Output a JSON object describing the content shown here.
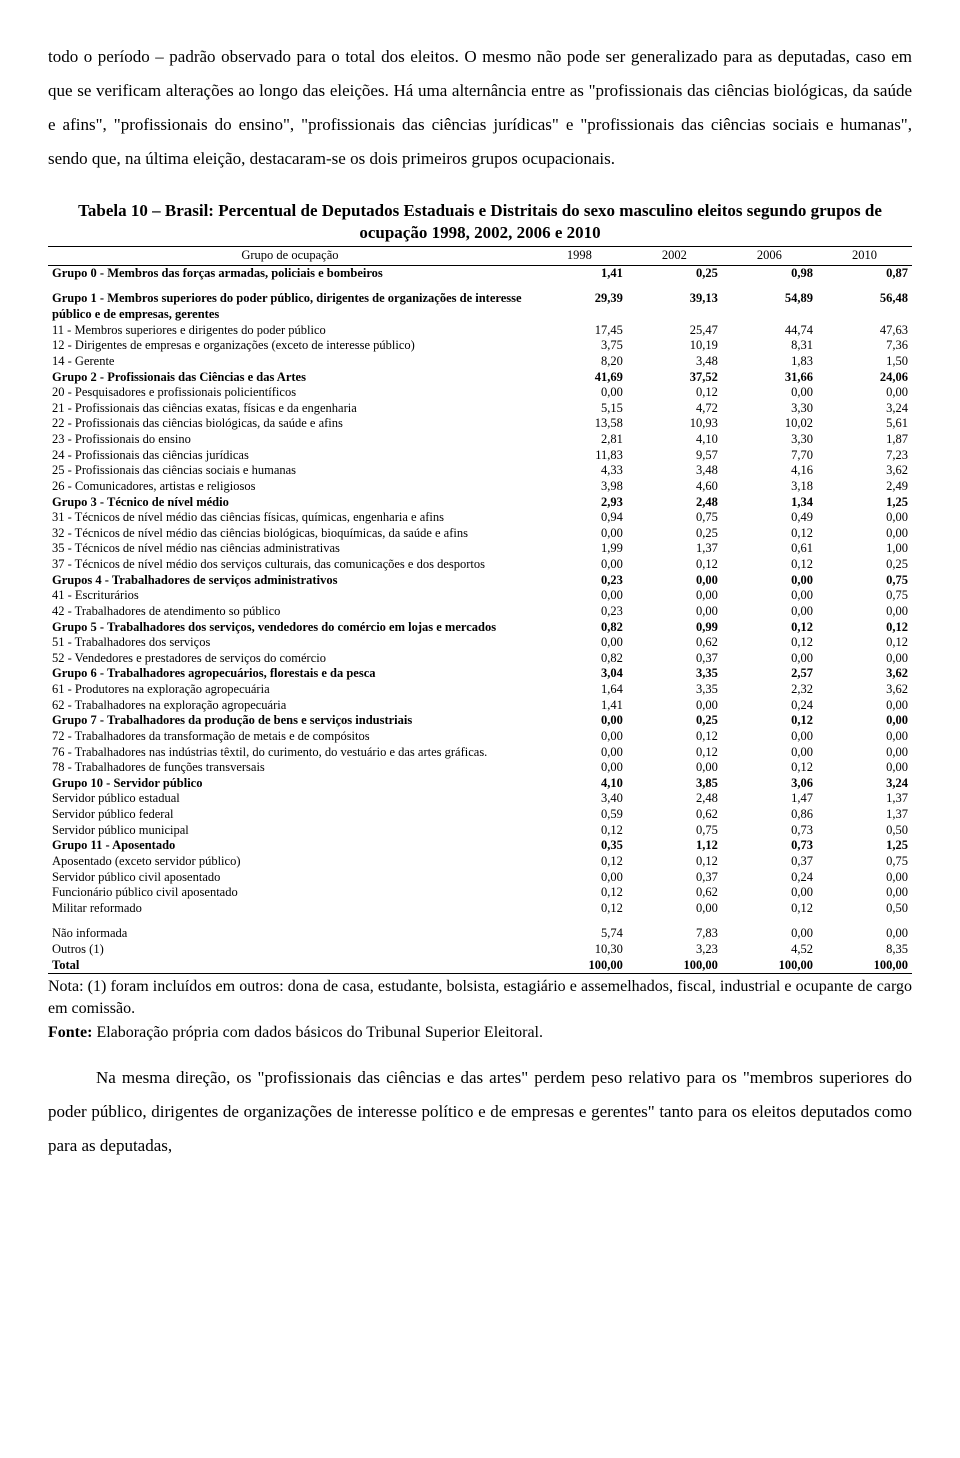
{
  "para_top": "todo o período – padrão observado para o total dos eleitos. O mesmo não pode ser generalizado para as deputadas, caso em que se verificam alterações ao longo das eleições. Há uma alternância entre as \"profissionais das ciências biológicas, da saúde e afins\", \"profissionais do ensino\", \"profissionais das ciências jurídicas\" e \"profissionais das ciências sociais e humanas\", sendo que, na última eleição, destacaram-se os dois primeiros grupos ocupacionais.",
  "table_title": "Tabela 10 – Brasil: Percentual de Deputados Estaduais e Distritais do sexo masculino eleitos segundo grupos de ocupação 1998, 2002, 2006 e 2010",
  "header": {
    "label": "Grupo de ocupação",
    "c1": "1998",
    "c2": "2002",
    "c3": "2006",
    "c4": "2010"
  },
  "rows": [
    {
      "bold": true,
      "label": "Grupo 0 - Membros das forças armadas, policiais e bombeiros",
      "v": [
        "1,41",
        "0,25",
        "0,98",
        "0,87"
      ]
    },
    {
      "spacer": true
    },
    {
      "bold": true,
      "label": "Grupo 1 - Membros superiores do poder público, dirigentes de organizações de interesse público e de empresas, gerentes",
      "v": [
        "29,39",
        "39,13",
        "54,89",
        "56,48"
      ]
    },
    {
      "bold": false,
      "label": "11 - Membros superiores e dirigentes do poder público",
      "v": [
        "17,45",
        "25,47",
        "44,74",
        "47,63"
      ]
    },
    {
      "bold": false,
      "label": "12 - Dirigentes de empresas e organizações (exceto de interesse público)",
      "v": [
        "3,75",
        "10,19",
        "8,31",
        "7,36"
      ]
    },
    {
      "bold": false,
      "label": "14 - Gerente",
      "v": [
        "8,20",
        "3,48",
        "1,83",
        "1,50"
      ]
    },
    {
      "bold": true,
      "label": "Grupo 2 - Profissionais das Ciências e das Artes",
      "v": [
        "41,69",
        "37,52",
        "31,66",
        "24,06"
      ]
    },
    {
      "bold": false,
      "label": "20 - Pesquisadores e profissionais policientíficos",
      "v": [
        "0,00",
        "0,12",
        "0,00",
        "0,00"
      ]
    },
    {
      "bold": false,
      "label": "21 - Profissionais das ciências exatas, físicas e da engenharia",
      "v": [
        "5,15",
        "4,72",
        "3,30",
        "3,24"
      ]
    },
    {
      "bold": false,
      "label": "22 - Profissionais das ciências biológicas, da saúde e afins",
      "v": [
        "13,58",
        "10,93",
        "10,02",
        "5,61"
      ]
    },
    {
      "bold": false,
      "label": "23 - Profissionais do ensino",
      "v": [
        "2,81",
        "4,10",
        "3,30",
        "1,87"
      ]
    },
    {
      "bold": false,
      "label": "24 - Profissionais das ciências jurídicas",
      "v": [
        "11,83",
        "9,57",
        "7,70",
        "7,23"
      ]
    },
    {
      "bold": false,
      "label": "25 - Profissionais das ciências sociais e humanas",
      "v": [
        "4,33",
        "3,48",
        "4,16",
        "3,62"
      ]
    },
    {
      "bold": false,
      "label": "26 - Comunicadores, artistas e religiosos",
      "v": [
        "3,98",
        "4,60",
        "3,18",
        "2,49"
      ]
    },
    {
      "bold": true,
      "label": "Grupo 3 - Técnico de nível médio",
      "v": [
        "2,93",
        "2,48",
        "1,34",
        "1,25"
      ]
    },
    {
      "bold": false,
      "label": "31 - Técnicos de nível médio das ciências físicas, químicas, engenharia e afins",
      "v": [
        "0,94",
        "0,75",
        "0,49",
        "0,00"
      ]
    },
    {
      "bold": false,
      "label": "32 - Técnicos de nível médio das ciências biológicas, bioquímicas, da saúde e afins",
      "v": [
        "0,00",
        "0,25",
        "0,12",
        "0,00"
      ]
    },
    {
      "bold": false,
      "label": "35 - Técnicos de nível médio nas ciências administrativas",
      "v": [
        "1,99",
        "1,37",
        "0,61",
        "1,00"
      ]
    },
    {
      "bold": false,
      "label": "37 - Técnicos de nível médio dos serviços culturais, das comunicações e dos desportos",
      "v": [
        "0,00",
        "0,12",
        "0,12",
        "0,25"
      ]
    },
    {
      "bold": true,
      "label": "Grupos 4 - Trabalhadores de serviços administrativos",
      "v": [
        "0,23",
        "0,00",
        "0,00",
        "0,75"
      ]
    },
    {
      "bold": false,
      "label": "41 - Escriturários",
      "v": [
        "0,00",
        "0,00",
        "0,00",
        "0,75"
      ]
    },
    {
      "bold": false,
      "label": "42 - Trabalhadores de atendimento so público",
      "v": [
        "0,23",
        "0,00",
        "0,00",
        "0,00"
      ]
    },
    {
      "bold": true,
      "label": "Grupo 5 - Trabalhadores dos serviços, vendedores do comércio em lojas e mercados",
      "v": [
        "0,82",
        "0,99",
        "0,12",
        "0,12"
      ]
    },
    {
      "bold": false,
      "label": "51 - Trabalhadores dos serviços",
      "v": [
        "0,00",
        "0,62",
        "0,12",
        "0,12"
      ]
    },
    {
      "bold": false,
      "label": "52 - Vendedores e prestadores de serviços do comércio",
      "v": [
        "0,82",
        "0,37",
        "0,00",
        "0,00"
      ]
    },
    {
      "bold": true,
      "label": "Grupo 6 - Trabalhadores agropecuários, florestais e da pesca",
      "v": [
        "3,04",
        "3,35",
        "2,57",
        "3,62"
      ]
    },
    {
      "bold": false,
      "label": "61 - Produtores na exploração agropecuária",
      "v": [
        "1,64",
        "3,35",
        "2,32",
        "3,62"
      ]
    },
    {
      "bold": false,
      "label": "62 - Trabalhadores na exploração agropecuária",
      "v": [
        "1,41",
        "0,00",
        "0,24",
        "0,00"
      ]
    },
    {
      "bold": true,
      "label": "Grupo 7 - Trabalhadores da produção de bens e serviços industriais",
      "v": [
        "0,00",
        "0,25",
        "0,12",
        "0,00"
      ]
    },
    {
      "bold": false,
      "label": "72 - Trabalhadores da transformação de metais e de compósitos",
      "v": [
        "0,00",
        "0,12",
        "0,00",
        "0,00"
      ]
    },
    {
      "bold": false,
      "label": "76 - Trabalhadores nas indústrias têxtil, do curimento, do vestuário e das artes gráficas.",
      "v": [
        "0,00",
        "0,12",
        "0,00",
        "0,00"
      ]
    },
    {
      "bold": false,
      "label": "78 - Trabalhadores de funções transversais",
      "v": [
        "0,00",
        "0,00",
        "0,12",
        "0,00"
      ]
    },
    {
      "bold": true,
      "label": "Grupo 10 - Servidor público",
      "v": [
        "4,10",
        "3,85",
        "3,06",
        "3,24"
      ]
    },
    {
      "bold": false,
      "label": "Servidor público estadual",
      "v": [
        "3,40",
        "2,48",
        "1,47",
        "1,37"
      ]
    },
    {
      "bold": false,
      "label": "Servidor público federal",
      "v": [
        "0,59",
        "0,62",
        "0,86",
        "1,37"
      ]
    },
    {
      "bold": false,
      "label": "Servidor público municipal",
      "v": [
        "0,12",
        "0,75",
        "0,73",
        "0,50"
      ]
    },
    {
      "bold": true,
      "label": "Grupo 11 - Aposentado",
      "v": [
        "0,35",
        "1,12",
        "0,73",
        "1,25"
      ]
    },
    {
      "bold": false,
      "label": "Aposentado (exceto servidor público)",
      "v": [
        "0,12",
        "0,12",
        "0,37",
        "0,75"
      ]
    },
    {
      "bold": false,
      "label": "Servidor público civil aposentado",
      "v": [
        "0,00",
        "0,37",
        "0,24",
        "0,00"
      ]
    },
    {
      "bold": false,
      "label": "Funcionário público civil aposentado",
      "v": [
        "0,12",
        "0,62",
        "0,00",
        "0,00"
      ]
    },
    {
      "bold": false,
      "label": "Militar reformado",
      "v": [
        "0,12",
        "0,00",
        "0,12",
        "0,50"
      ]
    },
    {
      "spacer": true
    },
    {
      "bold": false,
      "label": "Não informada",
      "v": [
        "5,74",
        "7,83",
        "0,00",
        "0,00"
      ]
    },
    {
      "bold": false,
      "label": "Outros (1)",
      "v": [
        "10,30",
        "3,23",
        "4,52",
        "8,35"
      ]
    }
  ],
  "total": {
    "label": "Total",
    "v": [
      "100,00",
      "100,00",
      "100,00",
      "100,00"
    ]
  },
  "note": "Nota: (1) foram incluídos em outros: dona de casa, estudante, bolsista, estagiário e assemelhados, fiscal, industrial e ocupante de cargo em comissão.",
  "fonte_label": "Fonte:",
  "fonte_text": " Elaboração própria com dados básicos do Tribunal Superior Eleitoral.",
  "para_bottom": "Na mesma direção, os \"profissionais das ciências e das artes\" perdem peso relativo para os \"membros superiores do poder público, dirigentes de organizações de interesse político e de empresas e gerentes\" tanto para os eleitos deputados como para as deputadas,"
}
